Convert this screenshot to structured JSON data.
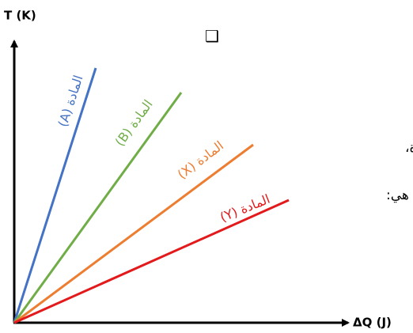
{
  "axes": {
    "y_label": "T (K)",
    "x_label": "ΔQ (J)"
  },
  "icon": "❑",
  "background_text": [
    "ية واحدة،",
    "ية نوعية هي:"
  ],
  "lines": [
    {
      "label": "المادة (A)",
      "color": "#4472c4"
    },
    {
      "label": "المادة (B)",
      "color": "#70ad47"
    },
    {
      "label": "المادة (X)",
      "color": "#ed7d31"
    },
    {
      "label": "المادة (Y)",
      "color": "#e31a1c"
    }
  ]
}
